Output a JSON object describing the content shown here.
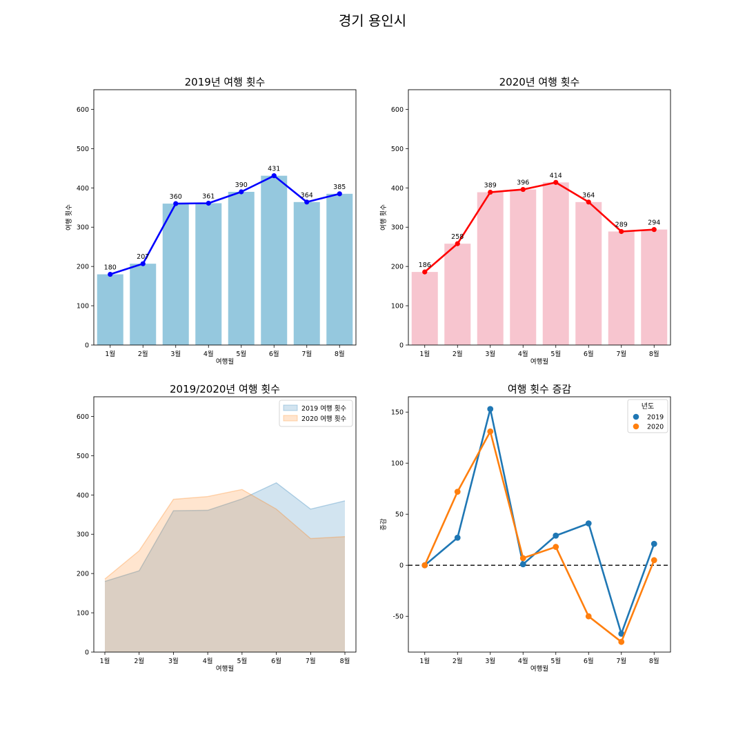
{
  "suptitle": "경기 용인시",
  "charts": [
    {
      "type": "bar",
      "title": "2019년 여행 횟수",
      "xlabel": "여행월",
      "ylabel": "여행 횟수",
      "ylim": [
        0,
        650
      ],
      "yticks": [
        0,
        100,
        200,
        300,
        400,
        500,
        600
      ],
      "categories": [
        "1월",
        "2월",
        "3월",
        "4월",
        "5월",
        "6월",
        "7월",
        "8월"
      ],
      "values": [
        180,
        207,
        360,
        361,
        390,
        431,
        364,
        385
      ],
      "data_labels": [
        "180",
        "207",
        "360",
        "361",
        "390",
        "431",
        "364",
        "385"
      ],
      "bar_color": "#95c8de",
      "line_color": "#0000ff"
    },
    {
      "type": "bar",
      "title": "2020년 여행 횟수",
      "xlabel": "여행월",
      "ylabel": "여행 횟수",
      "ylim": [
        0,
        650
      ],
      "yticks": [
        0,
        100,
        200,
        300,
        400,
        500,
        600
      ],
      "categories": [
        "1월",
        "2월",
        "3월",
        "4월",
        "5월",
        "6월",
        "7월",
        "8월"
      ],
      "values": [
        186,
        258,
        389,
        396,
        414,
        364,
        289,
        294
      ],
      "data_labels": [
        "186",
        "258",
        "389",
        "396",
        "414",
        "364",
        "289",
        "294"
      ],
      "bar_color": "#f7c5cf",
      "line_color": "#ff0000"
    },
    {
      "type": "area",
      "title": "2019/2020년 여행 횟수",
      "xlabel": "여행월",
      "ylim": [
        0,
        650
      ],
      "yticks": [
        0,
        100,
        200,
        300,
        400,
        500,
        600
      ],
      "categories": [
        "1월",
        "2월",
        "3월",
        "4월",
        "5월",
        "6월",
        "7월",
        "8월"
      ],
      "series": [
        {
          "name": "2019 여행 횟수",
          "values": [
            180,
            207,
            360,
            361,
            390,
            431,
            364,
            385
          ],
          "color": "#1f77b4"
        },
        {
          "name": "2020 여행 횟수",
          "values": [
            186,
            258,
            389,
            396,
            414,
            364,
            289,
            294
          ],
          "color": "#ff7f0e"
        }
      ],
      "legend_position": "top-right"
    },
    {
      "type": "line",
      "title": "여행 횟수 증감",
      "xlabel": "여행월",
      "ylabel": "증감",
      "ylim": [
        -85,
        165
      ],
      "yticks": [
        -50,
        0,
        50,
        100,
        150
      ],
      "categories": [
        "1월",
        "2월",
        "3월",
        "4월",
        "5월",
        "6월",
        "7월",
        "8월"
      ],
      "series": [
        {
          "name": "2019",
          "values": [
            0,
            27,
            153,
            1,
            29,
            41,
            -67,
            21
          ],
          "color": "#1f77b4"
        },
        {
          "name": "2020",
          "values": [
            0,
            72,
            131,
            7,
            18,
            -50,
            -75,
            5
          ],
          "color": "#ff7f0e"
        }
      ],
      "legend_title": "년도",
      "legend_position": "top-right",
      "reference_line": 0
    }
  ]
}
